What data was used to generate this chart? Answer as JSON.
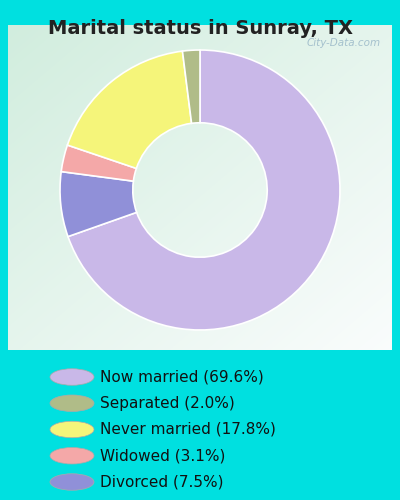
{
  "title": "Marital status in Sunray, TX",
  "slices": [
    {
      "label": "Now married (69.6%)",
      "value": 69.6,
      "color": "#c9b8e8"
    },
    {
      "label": "Separated (2.0%)",
      "value": 2.0,
      "color": "#b0bc88"
    },
    {
      "label": "Never married (17.8%)",
      "value": 17.8,
      "color": "#f5f57a"
    },
    {
      "label": "Widowed (3.1%)",
      "value": 3.1,
      "color": "#f4a8a8"
    },
    {
      "label": "Divorced (7.5%)",
      "value": 7.5,
      "color": "#9090d8"
    }
  ],
  "pie_order_values": [
    69.6,
    7.5,
    3.1,
    17.8,
    2.0
  ],
  "pie_order_colors": [
    "#c9b8e8",
    "#9090d8",
    "#f4a8a8",
    "#f5f57a",
    "#b0bc88"
  ],
  "bg_outer": "#00e0e0",
  "title_color": "#222222",
  "title_fontsize": 14,
  "legend_fontsize": 11,
  "watermark": "City-Data.com",
  "donut_width": 0.52,
  "start_angle": 90
}
